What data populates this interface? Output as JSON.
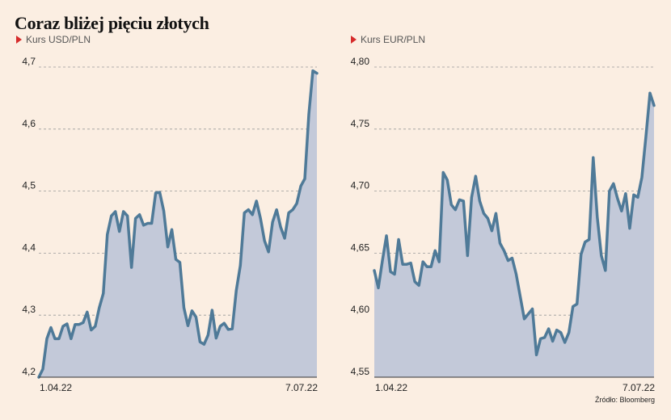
{
  "title": "Coraz bliżej pięciu złotych",
  "source": "Źródło: Bloomberg",
  "colors": {
    "background": "#fbeee2",
    "line": "#4f7a98",
    "area": "#c3c9d9",
    "marker": "#d62b2b",
    "grid": "#9a9a9a"
  },
  "chart_data": [
    {
      "type": "area",
      "title": "Kurs USD/PLN",
      "xlabel": "",
      "ylabel": "",
      "x_tick_labels": [
        "1.04.22",
        "7.07.22"
      ],
      "y_ticks": [
        "4,2",
        "4,3",
        "4,4",
        "4,5",
        "4,6",
        "4,7"
      ],
      "ylim": [
        4.2,
        4.7
      ],
      "grid": true,
      "values": [
        4.2,
        4.213,
        4.262,
        4.28,
        4.262,
        4.262,
        4.282,
        4.286,
        4.262,
        4.285,
        4.285,
        4.288,
        4.305,
        4.276,
        4.282,
        4.312,
        4.335,
        4.43,
        4.46,
        4.467,
        4.435,
        4.467,
        4.46,
        4.377,
        4.456,
        4.462,
        4.445,
        4.448,
        4.448,
        4.497,
        4.498,
        4.468,
        4.41,
        4.438,
        4.39,
        4.385,
        4.312,
        4.283,
        4.307,
        4.297,
        4.257,
        4.253,
        4.268,
        4.308,
        4.263,
        4.282,
        4.287,
        4.277,
        4.278,
        4.34,
        4.38,
        4.465,
        4.47,
        4.462,
        4.484,
        4.456,
        4.42,
        4.402,
        4.45,
        4.47,
        4.442,
        4.424,
        4.465,
        4.47,
        4.48,
        4.508,
        4.52,
        4.624,
        4.694,
        4.69
      ]
    },
    {
      "type": "area",
      "title": "Kurs EUR/PLN",
      "xlabel": "",
      "ylabel": "",
      "x_tick_labels": [
        "1.04.22",
        "7.07.22"
      ],
      "y_ticks": [
        "4,55",
        "4,60",
        "4,65",
        "4,70",
        "4,75",
        "4,80"
      ],
      "ylim": [
        4.55,
        4.8
      ],
      "grid": true,
      "values": [
        4.636,
        4.622,
        4.644,
        4.664,
        4.635,
        4.633,
        4.661,
        4.641,
        4.641,
        4.642,
        4.627,
        4.624,
        4.643,
        4.639,
        4.639,
        4.652,
        4.643,
        4.715,
        4.709,
        4.689,
        4.685,
        4.693,
        4.692,
        4.648,
        4.695,
        4.712,
        4.692,
        4.682,
        4.678,
        4.668,
        4.682,
        4.658,
        4.652,
        4.644,
        4.646,
        4.633,
        4.615,
        4.597,
        4.601,
        4.605,
        4.568,
        4.581,
        4.582,
        4.589,
        4.579,
        4.588,
        4.586,
        4.578,
        4.586,
        4.607,
        4.609,
        4.649,
        4.659,
        4.661,
        4.727,
        4.679,
        4.648,
        4.636,
        4.7,
        4.706,
        4.694,
        4.684,
        4.698,
        4.67,
        4.697,
        4.695,
        4.711,
        4.744,
        4.779,
        4.769
      ]
    }
  ]
}
